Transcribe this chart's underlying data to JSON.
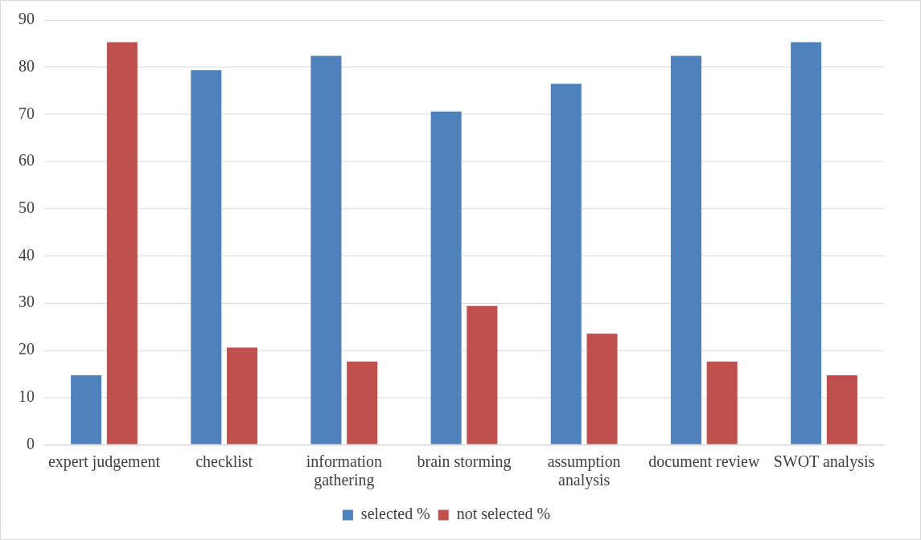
{
  "chart_data": {
    "type": "bar",
    "categories": [
      "expert judgement",
      "checklist",
      "information gathering",
      "brain storming",
      "assumption analysis",
      "document review",
      "SWOT analysis"
    ],
    "series": [
      {
        "name": "selected %",
        "color": "#4f81bd",
        "values": [
          14.7,
          79.4,
          82.4,
          70.6,
          76.5,
          82.4,
          85.3
        ]
      },
      {
        "name": "not selected %",
        "color": "#c0504d",
        "values": [
          85.3,
          20.6,
          17.6,
          29.4,
          23.5,
          17.6,
          14.7
        ]
      }
    ],
    "ylim": [
      0,
      90
    ],
    "yticks": [
      0,
      10,
      20,
      30,
      40,
      50,
      60,
      70,
      80,
      90
    ],
    "grid": "y",
    "legend": "bottom"
  }
}
